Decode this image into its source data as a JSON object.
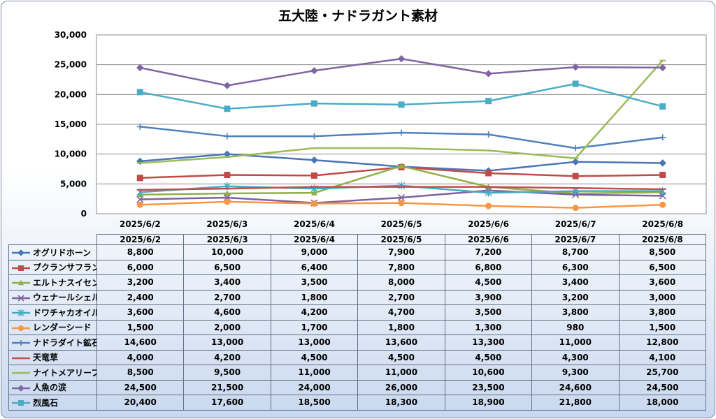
{
  "chart_data": {
    "type": "line",
    "title": "五大陸・ナドラガント素材",
    "categories": [
      "2025/6/2",
      "2025/6/3",
      "2025/6/4",
      "2025/6/5",
      "2025/6/6",
      "2025/6/7",
      "2025/6/8"
    ],
    "ylim": [
      0,
      30000
    ],
    "yticks": [
      "0",
      "5,000",
      "10,000",
      "15,000",
      "20,000",
      "25,000",
      "30,000"
    ],
    "grid": true,
    "legend": "table-below",
    "series": [
      {
        "name": "オグリドホーン",
        "color": "#4a76b5",
        "marker": "diamond",
        "values": [
          8800,
          10000,
          9000,
          7900,
          7200,
          8700,
          8500
        ],
        "labels": [
          "8,800",
          "10,000",
          "9,000",
          "7,900",
          "7,200",
          "8,700",
          "8,500"
        ]
      },
      {
        "name": "プクランサフラン",
        "color": "#bf4a48",
        "marker": "square",
        "values": [
          6000,
          6500,
          6400,
          7800,
          6800,
          6300,
          6500
        ],
        "labels": [
          "6,000",
          "6,500",
          "6,400",
          "7,800",
          "6,800",
          "6,300",
          "6,500"
        ]
      },
      {
        "name": "エルトナスイセン",
        "color": "#8fb046",
        "marker": "triangle",
        "values": [
          3200,
          3400,
          3500,
          8000,
          4500,
          3400,
          3600
        ],
        "labels": [
          "3,200",
          "3,400",
          "3,500",
          "8,000",
          "4,500",
          "3,400",
          "3,600"
        ]
      },
      {
        "name": "ウェナールシェル",
        "color": "#7d62a1",
        "marker": "x",
        "values": [
          2400,
          2700,
          1800,
          2700,
          3900,
          3200,
          3000
        ],
        "labels": [
          "2,400",
          "2,700",
          "1,800",
          "2,700",
          "3,900",
          "3,200",
          "3,000"
        ]
      },
      {
        "name": "ドワチャカオイル",
        "color": "#46aac4",
        "marker": "star",
        "values": [
          3600,
          4600,
          4200,
          4700,
          3500,
          3800,
          3800
        ],
        "labels": [
          "3,600",
          "4,600",
          "4,200",
          "4,700",
          "3,500",
          "3,800",
          "3,800"
        ]
      },
      {
        "name": "レンダーシード",
        "color": "#f79645",
        "marker": "circle",
        "values": [
          1500,
          2000,
          1700,
          1800,
          1300,
          980,
          1500
        ],
        "labels": [
          "1,500",
          "2,000",
          "1,700",
          "1,800",
          "1,300",
          "980",
          "1,500"
        ]
      },
      {
        "name": "ナドラダイト鉱石",
        "color": "#4f81bd",
        "marker": "plus",
        "values": [
          14600,
          13000,
          13000,
          13600,
          13300,
          11000,
          12800
        ],
        "labels": [
          "14,600",
          "13,000",
          "13,000",
          "13,600",
          "13,300",
          "11,000",
          "12,800"
        ]
      },
      {
        "name": "天竜草",
        "color": "#c0504d",
        "marker": "dash",
        "values": [
          4000,
          4200,
          4500,
          4500,
          4500,
          4300,
          4100
        ],
        "labels": [
          "4,000",
          "4,200",
          "4,500",
          "4,500",
          "4,500",
          "4,300",
          "4,100"
        ]
      },
      {
        "name": "ナイトメアリーフ",
        "color": "#9bbb59",
        "marker": "dash",
        "values": [
          8500,
          9500,
          11000,
          11000,
          10600,
          9300,
          25700
        ],
        "labels": [
          "8,500",
          "9,500",
          "11,000",
          "11,000",
          "10,600",
          "9,300",
          "25,700"
        ]
      },
      {
        "name": "人魚の涙",
        "color": "#8064a2",
        "marker": "diamond",
        "values": [
          24500,
          21500,
          24000,
          26000,
          23500,
          24600,
          24500
        ],
        "labels": [
          "24,500",
          "21,500",
          "24,000",
          "26,000",
          "23,500",
          "24,600",
          "24,500"
        ]
      },
      {
        "name": "烈風石",
        "color": "#4bacc6",
        "marker": "square",
        "values": [
          20400,
          17600,
          18500,
          18300,
          18900,
          21800,
          18000
        ],
        "labels": [
          "20,400",
          "17,600",
          "18,500",
          "18,300",
          "18,900",
          "21,800",
          "18,000"
        ]
      }
    ]
  }
}
